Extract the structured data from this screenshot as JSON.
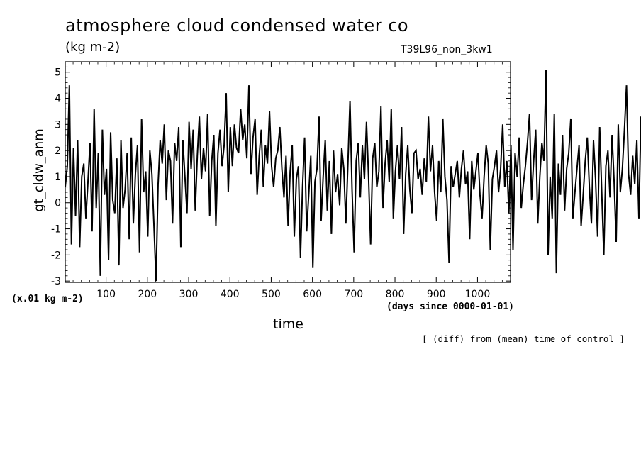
{
  "header": {
    "title": "atmosphere cloud condensed water co",
    "units": "(kg m-2)",
    "run_name": "T39L96_non_3kw1"
  },
  "axes": {
    "xlabel": "time",
    "x_units": "(days since 0000-01-01)",
    "y_label": "gt_cldw_anm",
    "y_units_note": "(x.01 kg m-2)"
  },
  "footer": {
    "note": "[ (diff) from (mean) time of control ]"
  },
  "chart_data": {
    "type": "line",
    "title": "atmosphere cloud condensed water co",
    "xlabel": "time",
    "ylabel": "gt_cldw_anm",
    "xlim": [
      1,
      1080
    ],
    "ylim": [
      -3.05,
      5.4
    ],
    "x_ticks": [
      100,
      200,
      300,
      400,
      500,
      600,
      700,
      800,
      900,
      1000
    ],
    "y_ticks": [
      -3,
      -2,
      -1,
      0,
      1,
      2,
      3,
      4,
      5
    ],
    "grid": false,
    "series": [
      {
        "x_start": 1,
        "x_step": 5,
        "values": [
          0.6,
          1.4,
          4.5,
          -1.6,
          2.1,
          -0.5,
          2.4,
          -1.7,
          1.0,
          1.5,
          -0.6,
          0.8,
          2.3,
          -1.1,
          3.6,
          -0.2,
          1.9,
          -2.8,
          2.8,
          0.3,
          1.3,
          -2.2,
          2.7,
          0.1,
          -0.4,
          1.7,
          -2.4,
          2.4,
          -0.2,
          0.5,
          1.9,
          -1.4,
          2.5,
          -0.8,
          1.1,
          2.2,
          -1.9,
          3.2,
          0.4,
          1.2,
          -1.3,
          2.0,
          1.1,
          -0.9,
          -3.0,
          0.7,
          2.4,
          1.5,
          3.0,
          0.1,
          2.0,
          1.6,
          -0.8,
          2.3,
          1.6,
          2.9,
          -1.7,
          2.4,
          1.0,
          -0.4,
          3.1,
          1.3,
          2.8,
          -0.3,
          1.8,
          3.3,
          0.9,
          2.1,
          1.2,
          3.4,
          -0.5,
          1.6,
          2.6,
          -0.9,
          1.9,
          2.8,
          1.4,
          2.2,
          4.2,
          0.4,
          2.9,
          1.4,
          3.0,
          2.1,
          1.9,
          3.6,
          2.4,
          3.0,
          1.7,
          4.5,
          1.1,
          2.5,
          3.2,
          0.3,
          1.8,
          2.8,
          0.6,
          2.2,
          1.5,
          3.5,
          1.4,
          0.6,
          1.7,
          2.0,
          2.9,
          1.3,
          0.2,
          1.8,
          -0.9,
          1.2,
          2.2,
          -1.3,
          0.9,
          1.4,
          -2.1,
          0.6,
          2.5,
          -1.1,
          0.3,
          1.8,
          -2.5,
          0.8,
          1.3,
          3.3,
          -0.7,
          1.0,
          2.4,
          -0.3,
          1.6,
          -1.2,
          2.0,
          0.4,
          1.1,
          -0.1,
          2.1,
          1.3,
          -0.8,
          1.5,
          3.9,
          0.5,
          -1.9,
          1.6,
          2.3,
          0.2,
          2.2,
          0.9,
          3.1,
          1.0,
          -1.6,
          1.7,
          2.3,
          0.6,
          1.2,
          3.7,
          -0.2,
          1.5,
          2.4,
          0.8,
          3.6,
          -0.6,
          1.2,
          2.2,
          0.9,
          2.9,
          -1.2,
          1.1,
          2.2,
          0.5,
          -0.4,
          1.9,
          2.0,
          0.9,
          1.3,
          0.3,
          1.7,
          0.8,
          3.3,
          1.2,
          2.2,
          0.4,
          -0.7,
          1.6,
          0.4,
          3.2,
          1.0,
          0.1,
          -2.3,
          1.4,
          0.6,
          1.1,
          1.6,
          0.2,
          1.3,
          2.0,
          0.7,
          1.2,
          -1.4,
          1.6,
          0.5,
          1.2,
          1.9,
          0.3,
          -0.6,
          1.0,
          2.2,
          1.5,
          -1.8,
          0.9,
          1.4,
          2.0,
          0.4,
          1.3,
          3.0,
          0.6,
          1.6,
          -0.4,
          2.2,
          -1.8,
          1.9,
          1.0,
          2.5,
          -0.2,
          0.7,
          1.4,
          2.3,
          3.4,
          0.1,
          1.6,
          2.8,
          -0.8,
          1.0,
          2.3,
          1.6,
          5.1,
          -2.0,
          1.0,
          -0.6,
          3.4,
          -2.7,
          1.5,
          0.3,
          2.6,
          -0.3,
          1.3,
          1.9,
          3.2,
          -0.6,
          0.4,
          1.3,
          2.2,
          -0.9,
          0.3,
          1.6,
          2.5,
          0.6,
          -0.8,
          2.4,
          0.9,
          -1.3,
          2.9,
          0.4,
          -2.0,
          1.4,
          2.0,
          0.2,
          2.6,
          0.8,
          -1.5,
          3.0,
          0.4,
          1.3,
          2.8,
          4.5,
          1.1,
          0.3,
          1.8,
          0.7,
          2.4,
          -0.6,
          3.3,
          1.3,
          0.2,
          2.0,
          3.8,
          1.1,
          1.7,
          4.7,
          0.8,
          2.9,
          1.4,
          2.3,
          0.6,
          -0.7,
          2.2,
          1.1,
          3.6,
          1.0,
          0.2,
          1.9,
          0.5,
          -1.1,
          1.6,
          2.4,
          0.3,
          1.8,
          2.9,
          0.6,
          2.1,
          3.1,
          0.4,
          -0.4,
          1.3,
          3.2,
          -0.4,
          1.0,
          0.1
        ]
      }
    ]
  }
}
